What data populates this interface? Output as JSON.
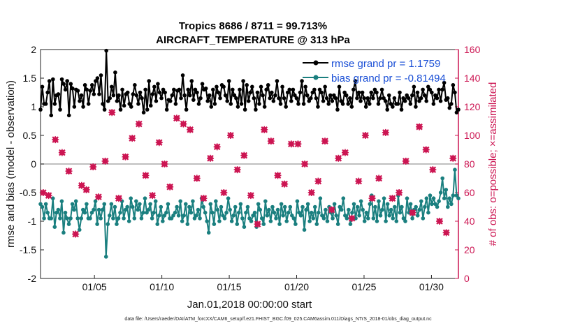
{
  "chart_data": {
    "type": "line",
    "title": "Tropics 8686 / 8711 = 99.713%",
    "subtitle": "AIRCRAFT_TEMPERATURE @ 313 hPa",
    "xlabel": "Jan.01,2018 00:00:00 start",
    "ylabel_left": "rmse and bias (model - observation)",
    "ylabel_right": "# of obs: o=possible; ×=assimilated",
    "footnote": "data file: /Users/raeder/DAI/ATM_forcXX/CAM6_setup/f.e21.FHIST_BGC.f09_025.CAM6assim.011/Diags_NTrS_2018-01/obs_diag_output.nc",
    "xlim": [
      1,
      32
    ],
    "ylim_left": [
      -2,
      2
    ],
    "ylim_right": [
      0,
      160
    ],
    "x_tick_labels": [
      "01/05",
      "01/10",
      "01/15",
      "01/20",
      "01/25",
      "01/30"
    ],
    "x_tick_values": [
      5,
      10,
      15,
      20,
      25,
      30
    ],
    "y_left_ticks": [
      -2,
      -1.5,
      -1,
      -0.5,
      0,
      0.5,
      1,
      1.5,
      2
    ],
    "y_left_tick_labels": [
      "-2",
      "-1.5",
      "-1",
      "-0.5",
      "0",
      "0.5",
      "1",
      "1.5",
      "2"
    ],
    "y_right_ticks": [
      0,
      20,
      40,
      60,
      80,
      100,
      120,
      140,
      160
    ],
    "y_right_tick_labels": [
      "0",
      "20",
      "40",
      "60",
      "80",
      "100",
      "120",
      "140",
      "160"
    ],
    "legend_location": "top-right",
    "series": [
      {
        "name": "rmse grand pr = 1.1759",
        "axis": "left",
        "color": "#000000",
        "values": [
          0.95,
          1.35,
          1.05,
          1.05,
          1.25,
          1.45,
          0.85,
          1.48,
          1.05,
          1.2,
          1.22,
          0.95,
          1.48,
          1.4,
          1.3,
          1.45,
          0.85,
          1.4,
          1.32,
          1.0,
          1.3,
          1.28,
          1.1,
          1.2,
          1.0,
          1.38,
          1.3,
          1.05,
          1.28,
          1.38,
          1.22,
          1.45,
          1.5,
          1.22,
          1.55,
          1.05,
          0.95,
          1.98,
          1.1,
          1.15,
          1.35,
          1.2,
          1.6,
          1.1,
          1.2,
          0.95,
          1.3,
          1.02,
          1.22,
          1.25,
          1.05,
          1.0,
          1.22,
          1.38,
          1.2,
          1.05,
          1.25,
          1.15,
          0.9,
          1.3,
          0.95,
          1.45,
          1.02,
          1.22,
          1.35,
          1.1,
          1.4,
          1.25,
          1.15,
          1.3,
          1.25,
          0.95,
          1.12,
          1.1,
          1.2,
          1.3,
          1.05,
          1.28,
          1.3,
          1.15,
          1.55,
          1.2,
          0.95,
          1.3,
          1.2,
          1.45,
          1.12,
          1.3,
          1.25,
          1.05,
          1.15,
          1.4,
          1.3,
          1.32,
          1.1,
          1.2,
          1.0,
          1.3,
          1.05,
          1.35,
          1.25,
          1.15,
          1.38,
          1.35,
          1.2,
          1.1,
          1.45,
          1.05,
          1.3,
          1.2,
          1.15,
          1.0,
          1.3,
          1.05,
          1.45,
          0.95,
          1.38,
          1.1,
          1.25,
          1.35,
          1.15,
          0.95,
          1.25,
          1.05,
          1.35,
          1.2,
          1.0,
          1.3,
          1.38,
          1.15,
          1.25,
          1.1,
          1.2,
          1.45,
          1.15,
          1.05,
          1.35,
          1.15,
          1.0,
          1.25,
          1.3,
          1.1,
          1.3,
          1.2,
          1.15,
          1.05,
          1.25,
          1.45,
          1.05,
          1.35,
          1.2,
          1.1,
          1.15,
          1.25,
          1.3,
          1.15,
          1.0,
          1.3,
          1.25,
          1.1,
          1.35,
          1.15,
          1.05,
          1.2,
          1.1,
          1.2,
          1.15,
          0.95,
          1.35,
          1.1,
          1.05,
          1.25,
          1.2,
          1.05,
          1.15,
          1.0,
          1.3,
          1.45,
          1.15,
          1.25,
          1.1,
          1.25,
          1.15,
          1.0,
          1.15,
          1.05,
          1.25,
          1.15,
          1.3,
          1.25,
          1.05,
          1.15,
          1.3,
          1.15,
          1.1,
          0.95,
          1.2,
          1.05,
          1.0,
          1.15,
          1.05,
          1.05,
          1.25,
          0.95,
          1.15,
          1.1,
          1.2,
          1.15,
          1.05,
          1.2,
          1.35,
          1.0,
          1.25,
          1.1,
          1.15,
          1.3,
          1.2,
          1.1,
          1.35,
          1.3,
          1.25,
          1.05,
          1.2,
          1.15,
          1.3,
          1.1,
          1.3,
          1.42,
          1.12,
          1.15,
          0.98,
          1.05,
          1.38,
          1.25,
          0.9,
          0.95
        ]
      },
      {
        "name": "bias grand pr = -0.81494",
        "axis": "left",
        "color": "#1a7f7f",
        "values": [
          -0.7,
          -0.75,
          -0.95,
          -0.7,
          -0.85,
          -0.95,
          -0.95,
          -0.6,
          -1.1,
          -0.85,
          -0.8,
          -0.95,
          -0.65,
          -1.2,
          -0.85,
          -0.95,
          -1.05,
          -0.95,
          -0.7,
          -0.8,
          -0.65,
          -0.95,
          -1.15,
          -0.95,
          -0.8,
          -0.85,
          -0.7,
          -0.95,
          -0.95,
          -0.85,
          -0.8,
          -0.65,
          -1.05,
          -0.8,
          -0.95,
          -0.8,
          -0.7,
          -1.62,
          -1.05,
          -0.9,
          -0.7,
          -0.95,
          -0.75,
          -1.05,
          -0.95,
          -0.85,
          -0.65,
          -0.95,
          -0.8,
          -0.75,
          -1.0,
          -0.6,
          -0.75,
          -0.95,
          -0.65,
          -0.8,
          -0.7,
          -0.95,
          -0.85,
          -0.6,
          -0.85,
          -0.8,
          -0.7,
          -0.95,
          -0.85,
          -0.65,
          -1.05,
          -0.9,
          -0.75,
          -1.0,
          -0.9,
          -0.85,
          -0.7,
          -0.95,
          -0.95,
          -0.9,
          -0.85,
          -0.75,
          -0.9,
          -0.65,
          -1.0,
          -0.9,
          -0.7,
          -1.05,
          -0.75,
          -0.85,
          -0.65,
          -0.95,
          -0.9,
          -0.8,
          -0.95,
          -0.6,
          -0.75,
          -0.85,
          -1.0,
          -1.2,
          -0.7,
          -0.85,
          -1.05,
          -0.65,
          -0.8,
          -1.0,
          -0.75,
          -0.9,
          -0.95,
          -0.85,
          -0.6,
          -0.8,
          -1.0,
          -0.9,
          -0.75,
          -1.05,
          -0.85,
          -0.7,
          -0.95,
          -1.1,
          -0.85,
          -0.75,
          -0.95,
          -1.0,
          -0.9,
          -0.85,
          -1.1,
          -0.7,
          -0.8,
          -0.95,
          -1.05,
          -0.65,
          -0.9,
          -0.8,
          -1.0,
          -0.75,
          -0.85,
          -0.95,
          -0.8,
          -1.05,
          -0.7,
          -0.9,
          -0.75,
          -1.0,
          -0.85,
          -0.75,
          -0.9,
          -0.95,
          -1.05,
          -0.65,
          -0.85,
          -0.9,
          -0.75,
          -1.15,
          -0.8,
          -0.7,
          -1.0,
          -0.85,
          -0.95,
          -0.75,
          -1.05,
          -0.85,
          -0.6,
          -0.9,
          -0.95,
          -0.8,
          -1.0,
          -0.75,
          -0.85,
          -0.95,
          -0.7,
          -0.9,
          -1.05,
          -0.75,
          -0.8,
          -0.6,
          -0.9,
          -0.95,
          -0.8,
          -1.05,
          -0.85,
          -0.7,
          -0.95,
          -0.75,
          -0.9,
          -0.65,
          -0.8,
          -1.0,
          -0.85,
          -0.95,
          -0.7,
          -0.55,
          -0.95,
          -0.75,
          -1.0,
          -0.65,
          -0.9,
          -0.8,
          -0.6,
          -1.0,
          -0.7,
          -0.9,
          -0.8,
          -0.95,
          -0.75,
          -1.0,
          -0.55,
          -0.85,
          -0.75,
          -0.95,
          -1.0,
          -0.6,
          -0.85,
          -0.7,
          -0.95,
          -0.8,
          -0.75,
          -0.9,
          -0.8,
          -0.65,
          -0.95,
          -0.75,
          -0.6,
          -0.85,
          -0.55,
          -0.7,
          -0.6,
          -0.7,
          -0.75,
          -0.65,
          -0.5,
          -0.25,
          -0.6,
          -0.45,
          -0.75,
          -0.6,
          -0.7,
          -0.55,
          -0.1,
          -0.55,
          -0.6
        ]
      },
      {
        "name": "obs possible",
        "axis": "right",
        "marker": "o",
        "color": "#cc1552",
        "x": [
          1.2,
          1.6,
          2.1,
          2.6,
          3.1,
          3.6,
          4.05,
          4.4,
          4.9,
          5.3,
          5.8,
          6.3,
          6.8,
          7.3,
          7.8,
          8.3,
          8.8,
          9.3,
          9.8,
          10.2,
          10.6,
          11.1,
          11.6,
          12.1,
          12.6,
          13.1,
          13.6,
          14.1,
          14.6,
          15.1,
          15.6,
          16.1,
          16.6,
          17.1,
          17.6,
          18.1,
          18.6,
          19.1,
          19.6,
          20.1,
          20.6,
          21.1,
          21.6,
          22.1,
          22.6,
          23.1,
          23.6,
          24.1,
          24.6,
          25.1,
          25.6,
          26.1,
          26.6,
          27.1,
          27.6,
          28.1,
          28.6,
          29.1,
          29.6,
          30.1,
          30.6,
          31.1,
          31.6
        ],
        "values": [
          60,
          58,
          97,
          88,
          75,
          31,
          65,
          62,
          78,
          57,
          82,
          116,
          56,
          85,
          98,
          108,
          72,
          58,
          95,
          80,
          64,
          112,
          108,
          104,
          70,
          56,
          84,
          92,
          60,
          100,
          76,
          86,
          58,
          38,
          104,
          96,
          72,
          66,
          94,
          94,
          80,
          60,
          68,
          96,
          48,
          84,
          88,
          42,
          68,
          100,
          56,
          70,
          102,
          56,
          60,
          82,
          46,
          106,
          90,
          76,
          40,
          32,
          84
        ]
      },
      {
        "name": "obs assimilated",
        "axis": "right",
        "marker": "x",
        "color": "#cc1552",
        "x": [
          1.2,
          1.6,
          2.1,
          2.6,
          3.1,
          3.6,
          4.05,
          4.4,
          4.9,
          5.3,
          5.8,
          6.3,
          6.8,
          7.3,
          7.8,
          8.3,
          8.8,
          9.3,
          9.8,
          10.2,
          10.6,
          11.1,
          11.6,
          12.1,
          12.6,
          13.1,
          13.6,
          14.1,
          14.6,
          15.1,
          15.6,
          16.1,
          16.6,
          17.1,
          17.6,
          18.1,
          18.6,
          19.1,
          19.6,
          20.1,
          20.6,
          21.1,
          21.6,
          22.1,
          22.6,
          23.1,
          23.6,
          24.1,
          24.6,
          25.1,
          25.6,
          26.1,
          26.6,
          27.1,
          27.6,
          28.1,
          28.6,
          29.1,
          29.6,
          30.1,
          30.6,
          31.1,
          31.6
        ],
        "values": [
          60,
          58,
          97,
          88,
          75,
          31,
          65,
          62,
          78,
          57,
          82,
          116,
          56,
          85,
          98,
          108,
          72,
          58,
          95,
          80,
          64,
          112,
          108,
          104,
          70,
          56,
          84,
          92,
          60,
          100,
          76,
          86,
          58,
          38,
          104,
          96,
          72,
          66,
          94,
          94,
          80,
          60,
          68,
          96,
          48,
          84,
          88,
          42,
          68,
          100,
          56,
          70,
          102,
          56,
          60,
          82,
          46,
          106,
          90,
          76,
          40,
          32,
          84
        ]
      }
    ]
  }
}
